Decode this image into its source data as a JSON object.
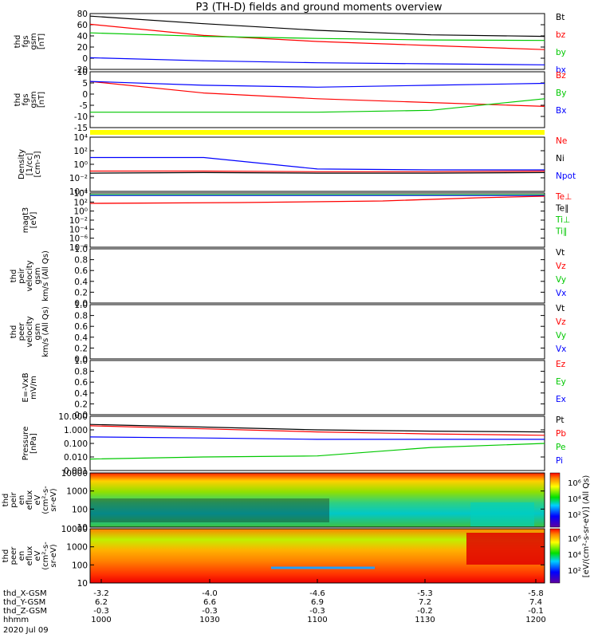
{
  "title": "P3 (TH-D) fields and ground moments overview",
  "colors": {
    "black": "#000000",
    "red": "#ff0000",
    "green": "#00c800",
    "blue": "#0000ff",
    "yellow": "#ffff00"
  },
  "panels": [
    {
      "id": "fgs-gsm",
      "ylabel": [
        "thd",
        "fgs",
        "gsm",
        "[nT]"
      ],
      "yticks": [
        "80",
        "60",
        "40",
        "20",
        "0",
        "-20"
      ],
      "ymin": -25,
      "ymax": 85,
      "legend": [
        {
          "label": "Bt",
          "color": "black"
        },
        {
          "label": "bz",
          "color": "red"
        },
        {
          "label": "by",
          "color": "green"
        },
        {
          "label": "bx",
          "color": "blue"
        }
      ]
    },
    {
      "id": "fgs-dsl",
      "ylabel": [
        "thd",
        "fgs",
        "gsm",
        "[nT]"
      ],
      "yticks": [
        "10",
        "5",
        "0",
        "-5",
        "-10",
        "-15"
      ],
      "ymin": -18,
      "ymax": 11,
      "legend": [
        {
          "label": "Bz",
          "color": "red"
        },
        {
          "label": "By",
          "color": "green"
        },
        {
          "label": "Bx",
          "color": "blue"
        }
      ]
    },
    {
      "id": "density",
      "ylabel": [
        "Density",
        "[1/cc]",
        "[cm-3]"
      ],
      "yticks": [
        "10⁴",
        "10²",
        "10⁰",
        "10⁻²",
        "10⁻⁴"
      ],
      "legend": [
        {
          "label": "Ne",
          "color": "red"
        },
        {
          "label": "Ni",
          "color": "black"
        },
        {
          "label": "Npot",
          "color": "blue"
        }
      ]
    },
    {
      "id": "temperature",
      "ylabel": [
        "magt3",
        "[eV]"
      ],
      "yticks": [
        "10⁴",
        "10²",
        "10⁰",
        "10⁻²",
        "10⁻⁴",
        "10⁻⁶",
        "10⁻⁸"
      ],
      "legend": [
        {
          "label": "Te⊥",
          "color": "red"
        },
        {
          "label": "Te∥",
          "color": "black"
        },
        {
          "label": "Ti⊥",
          "color": "green"
        },
        {
          "label": "Ti∥",
          "color": "green"
        }
      ]
    },
    {
      "id": "peir-velocity",
      "ylabel": [
        "thd",
        "peir",
        "velocity",
        "gsm",
        "km/s (All Qs)"
      ],
      "yticks": [
        "1.0",
        "0.8",
        "0.6",
        "0.4",
        "0.2",
        "0.0"
      ],
      "legend": [
        {
          "label": "Vt",
          "color": "black"
        },
        {
          "label": "Vz",
          "color": "red"
        },
        {
          "label": "Vy",
          "color": "green"
        },
        {
          "label": "Vx",
          "color": "blue"
        }
      ]
    },
    {
      "id": "peer-velocity",
      "ylabel": [
        "thd",
        "peer",
        "velocity",
        "gsm",
        "km/s (All Qs)"
      ],
      "yticks": [
        "1.0",
        "0.8",
        "0.6",
        "0.4",
        "0.2",
        "0.0"
      ],
      "legend": [
        {
          "label": "Vt",
          "color": "black"
        },
        {
          "label": "Vz",
          "color": "red"
        },
        {
          "label": "Vy",
          "color": "green"
        },
        {
          "label": "Vx",
          "color": "blue"
        }
      ]
    },
    {
      "id": "efield",
      "ylabel": [
        "E=-VxB",
        "mV/m"
      ],
      "yticks": [
        "1.0",
        "0.8",
        "0.6",
        "0.4",
        "0.2",
        "0.0"
      ],
      "legend": [
        {
          "label": "Ez",
          "color": "red"
        },
        {
          "label": "Ey",
          "color": "green"
        },
        {
          "label": "Ex",
          "color": "blue"
        }
      ]
    },
    {
      "id": "pressure",
      "ylabel": [
        "Pressure",
        "[nPa]"
      ],
      "yticks": [
        "10.000",
        "1.000",
        "0.100",
        "0.010",
        "0.001"
      ],
      "legend": [
        {
          "label": "Pt",
          "color": "black"
        },
        {
          "label": "Pb",
          "color": "red"
        },
        {
          "label": "Pe",
          "color": "green"
        },
        {
          "label": "Pi",
          "color": "blue"
        }
      ]
    },
    {
      "id": "peir-eflux",
      "ylabel": [
        "thd",
        "peir",
        "en",
        "eflux",
        "eV",
        "(cm²-s-",
        "sr-eV)"
      ],
      "yticks": [
        "10000",
        "1000",
        "100",
        "10"
      ],
      "colorbar_ticks": [
        "10⁶",
        "10⁴",
        "10²"
      ],
      "colorbar_label": "[eV/(cm²-s-sr-eV)] (All Qs)"
    },
    {
      "id": "peer-eflux",
      "ylabel": [
        "thd",
        "peer",
        "en",
        "eflux",
        "eV",
        "(cm²-s-",
        "sr-eV)"
      ],
      "yticks": [
        "10000",
        "1000",
        "100",
        "10"
      ],
      "colorbar_ticks": [
        "10⁶",
        "10⁴",
        "10²"
      ],
      "colorbar_label": "[eV/(cm²-s-sr-eV)] (All Qs)"
    }
  ],
  "xaxis": {
    "rows": [
      {
        "label": "thd_X-GSM",
        "values": [
          "-3.2",
          "-4.0",
          "-4.6",
          "-5.3",
          "-5.8"
        ]
      },
      {
        "label": "thd_Y-GSM",
        "values": [
          "6.2",
          "6.6",
          "6.9",
          "7.2",
          "7.4"
        ]
      },
      {
        "label": "thd_Z-GSM",
        "values": [
          "-0.3",
          "-0.3",
          "-0.3",
          "-0.2",
          "-0.1"
        ]
      },
      {
        "label": "hhmm",
        "values": [
          "1000",
          "1030",
          "1100",
          "1130",
          "1200"
        ]
      }
    ],
    "date": "2020 Jul 09"
  },
  "chart_data": [
    {
      "type": "line",
      "title": "",
      "ylabel": "thd fgs gsm [nT]",
      "ylim": [
        -25,
        85
      ],
      "x": [
        "1000",
        "1030",
        "1100",
        "1130",
        "1200"
      ],
      "series": [
        {
          "name": "Bt",
          "values": [
            80,
            65,
            52,
            43,
            40
          ]
        },
        {
          "name": "bz",
          "values": [
            64,
            42,
            30,
            22,
            14
          ]
        },
        {
          "name": "by",
          "values": [
            47,
            40,
            36,
            33,
            32
          ]
        },
        {
          "name": "bx",
          "values": [
            -2,
            -8,
            -12,
            -14,
            -16
          ]
        }
      ]
    },
    {
      "type": "line",
      "title": "",
      "ylabel": "thd fgs gsm [nT]",
      "ylim": [
        -18,
        11
      ],
      "x": [
        "1000",
        "1030",
        "1100",
        "1130",
        "1200"
      ],
      "series": [
        {
          "name": "Bz",
          "values": [
            6,
            0,
            -3,
            -5,
            -7
          ]
        },
        {
          "name": "By",
          "values": [
            -10,
            -10,
            -10,
            -9,
            -3
          ]
        },
        {
          "name": "Bx",
          "values": [
            6,
            4,
            3,
            4,
            5
          ]
        }
      ]
    },
    {
      "type": "line",
      "title": "",
      "ylabel": "Density [1/cc] [cm-3]",
      "yscale": "log",
      "x": [
        "1000",
        "1030",
        "1100",
        "1130",
        "1200"
      ],
      "series": [
        {
          "name": "Ne",
          "values": [
            0.1,
            0.1,
            0.08,
            0.08,
            0.1
          ]
        },
        {
          "name": "Ni",
          "values": [
            0.05,
            0.06,
            0.05,
            0.05,
            0.06
          ]
        },
        {
          "name": "Npot",
          "values": [
            10,
            10,
            0.2,
            0.15,
            0.15
          ]
        }
      ]
    },
    {
      "type": "line",
      "title": "",
      "ylabel": "Pressure [nPa]",
      "yscale": "log",
      "x": [
        "1000",
        "1030",
        "1100",
        "1130",
        "1200"
      ],
      "series": [
        {
          "name": "Pt",
          "values": [
            2.5,
            1.6,
            1.0,
            0.8,
            0.7
          ]
        },
        {
          "name": "Pb",
          "values": [
            2.0,
            1.2,
            0.7,
            0.5,
            0.4
          ]
        },
        {
          "name": "Pe",
          "values": [
            0.007,
            0.01,
            0.012,
            0.05,
            0.1
          ]
        },
        {
          "name": "Pi",
          "values": [
            0.3,
            0.25,
            0.2,
            0.2,
            0.2
          ]
        }
      ]
    }
  ]
}
